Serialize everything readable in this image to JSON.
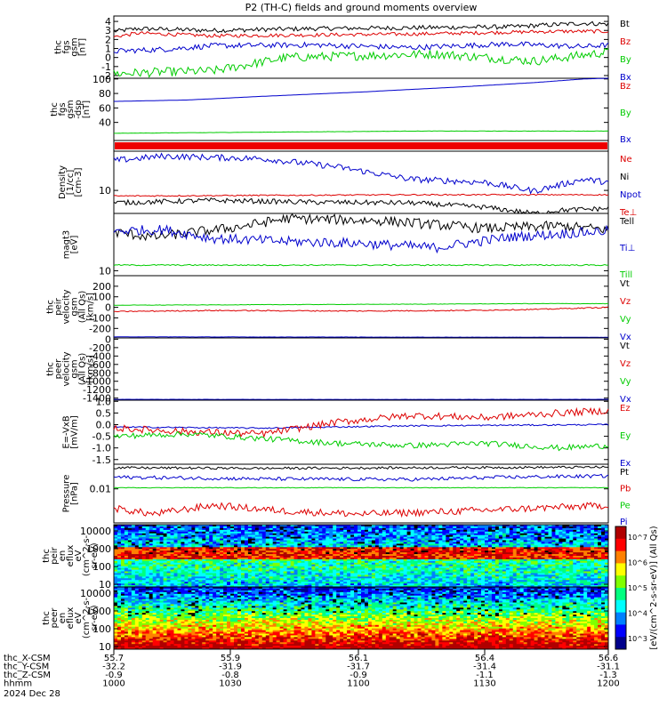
{
  "title": "P2 (TH-C) fields and ground moments overview",
  "date_label": "2024 Dec 28",
  "x_rows": [
    {
      "label": "thc_X-CSM",
      "values": [
        "55.7",
        "55.9",
        "56.1",
        "56.4",
        "56.6"
      ]
    },
    {
      "label": "thc_Y-CSM",
      "values": [
        "-32.2",
        "-31.9",
        "-31.7",
        "-31.4",
        "-31.1"
      ]
    },
    {
      "label": "thc_Z-CSM",
      "values": [
        "-0.9",
        "-0.8",
        "-0.9",
        "-1.1",
        "-1.3"
      ]
    },
    {
      "label": "hhmm",
      "values": [
        "1000",
        "1030",
        "1100",
        "1130",
        "1200"
      ]
    }
  ],
  "colors": {
    "black": "#000000",
    "red": "#dd0000",
    "green": "#00cc00",
    "blue": "#0000cc"
  },
  "colorbar_label": "[eV/(cm^2-s-sr-eV)] (All Qs)",
  "colorbar_ticks": [
    "10^7",
    "10^6",
    "10^5",
    "10^4",
    "10^3"
  ],
  "chart_data": [
    {
      "type": "line",
      "ylabel": [
        "thc",
        "fgs",
        "gsm",
        "[nT]"
      ],
      "ylim": [
        -2.3,
        4.6
      ],
      "yticks": [
        "4",
        "3",
        "2",
        "1",
        "0",
        "-1",
        "-2"
      ],
      "ytick_values": [
        4,
        3,
        2,
        1,
        0,
        -1,
        -2
      ],
      "legend": [
        {
          "name": "Bt",
          "color": "#000000"
        },
        {
          "name": "Bz",
          "color": "#dd0000"
        },
        {
          "name": "By",
          "color": "#00cc00"
        },
        {
          "name": "Bx",
          "color": "#0000cc"
        }
      ],
      "series": [
        {
          "name": "Bt",
          "anchors": [
            [
              0,
              2.9
            ],
            [
              0.05,
              3.2
            ],
            [
              0.2,
              3.0
            ],
            [
              0.4,
              3.2
            ],
            [
              0.6,
              3.3
            ],
            [
              0.8,
              3.4
            ],
            [
              0.95,
              3.8
            ],
            [
              1,
              3.7
            ]
          ],
          "noise": 0.25
        },
        {
          "name": "Bz",
          "anchors": [
            [
              0,
              2.3
            ],
            [
              0.05,
              2.7
            ],
            [
              0.2,
              2.4
            ],
            [
              0.4,
              2.5
            ],
            [
              0.6,
              2.6
            ],
            [
              0.8,
              2.8
            ],
            [
              0.9,
              2.9
            ],
            [
              1,
              2.9
            ]
          ],
          "noise": 0.2
        },
        {
          "name": "By",
          "anchors": [
            [
              0,
              -1.8
            ],
            [
              0.1,
              -1.6
            ],
            [
              0.2,
              -1.5
            ],
            [
              0.35,
              0
            ],
            [
              0.5,
              0.2
            ],
            [
              0.65,
              0.4
            ],
            [
              0.85,
              -0.4
            ],
            [
              1,
              0.6
            ]
          ],
          "noise": 0.5
        },
        {
          "name": "Bx",
          "anchors": [
            [
              0,
              0.7
            ],
            [
              0.1,
              0.9
            ],
            [
              0.2,
              1.3
            ],
            [
              0.4,
              1.4
            ],
            [
              0.6,
              1.1
            ],
            [
              0.8,
              1.5
            ],
            [
              0.95,
              1.2
            ],
            [
              1,
              1.4
            ]
          ],
          "noise": 0.3
        }
      ]
    },
    {
      "type": "line",
      "ylabel": [
        "thc",
        "fgs",
        "gsm",
        "-dsp",
        "[nT]"
      ],
      "ylim": [
        15,
        101
      ],
      "yticks": [
        "100",
        "80",
        "60",
        "40"
      ],
      "ytick_values": [
        100,
        80,
        60,
        40
      ],
      "legend": [
        {
          "name": "Bz",
          "color": "#dd0000"
        },
        {
          "name": "By",
          "color": "#00cc00"
        },
        {
          "name": "Bx",
          "color": "#0000cc"
        }
      ],
      "series": [
        {
          "name": "Bx",
          "anchors": [
            [
              0,
              69
            ],
            [
              0.15,
              71
            ],
            [
              0.3,
              76
            ],
            [
              0.5,
              82
            ],
            [
              0.7,
              89
            ],
            [
              0.85,
              95
            ],
            [
              0.95,
              100
            ],
            [
              1,
              101
            ]
          ],
          "noise": 0
        },
        {
          "name": "By",
          "anchors": [
            [
              0,
              25
            ],
            [
              0.2,
              26
            ],
            [
              0.4,
              27
            ],
            [
              0.6,
              28
            ],
            [
              0.8,
              28
            ],
            [
              1,
              28
            ]
          ],
          "noise": 0.2
        }
      ]
    },
    {
      "type": "line",
      "ylabel": [
        "Density",
        "[1/cc]",
        "[cm-3]"
      ],
      "ylim": [
        0,
        1
      ],
      "yticks": [
        "10"
      ],
      "ytick_values": [
        0.37
      ],
      "legend": [
        {
          "name": "Ne",
          "color": "#dd0000"
        },
        {
          "name": "Ni",
          "color": "#000000"
        },
        {
          "name": "Npot",
          "color": "#0000cc"
        },
        {
          "name": "Te⊥",
          "color": "#dd0000"
        }
      ],
      "series": [
        {
          "name": "Npot",
          "anchors": [
            [
              0,
              0.85
            ],
            [
              0.1,
              0.92
            ],
            [
              0.3,
              0.88
            ],
            [
              0.45,
              0.75
            ],
            [
              0.6,
              0.55
            ],
            [
              0.75,
              0.5
            ],
            [
              0.85,
              0.36
            ],
            [
              0.95,
              0.55
            ],
            [
              1,
              0.5
            ]
          ],
          "noise": 0.05
        },
        {
          "name": "Ne",
          "anchors": [
            [
              0,
              0.28
            ],
            [
              0.3,
              0.29
            ],
            [
              0.6,
              0.3
            ],
            [
              1,
              0.3
            ]
          ],
          "noise": 0.01
        },
        {
          "name": "Ni",
          "anchors": [
            [
              0,
              0.17
            ],
            [
              0.2,
              0.21
            ],
            [
              0.4,
              0.18
            ],
            [
              0.6,
              0.17
            ],
            [
              0.75,
              0.1
            ],
            [
              0.85,
              0.0
            ],
            [
              0.9,
              0.05
            ],
            [
              1,
              0.08
            ]
          ],
          "noise": 0.04
        }
      ]
    },
    {
      "type": "line",
      "ylabel": [
        "magt3",
        "[eV]"
      ],
      "ylim": [
        0,
        1
      ],
      "yticks": [
        "10"
      ],
      "ytick_values": [
        0.08
      ],
      "legend": [
        {
          "name": "Tell",
          "color": "#000000"
        },
        {
          "name": "Ti⊥",
          "color": "#0000cc"
        },
        {
          "name": "Till",
          "color": "#00cc00"
        }
      ],
      "series": [
        {
          "name": "Tell",
          "anchors": [
            [
              0,
              0.7
            ],
            [
              0.08,
              0.62
            ],
            [
              0.25,
              0.78
            ],
            [
              0.35,
              0.92
            ],
            [
              0.55,
              0.88
            ],
            [
              0.75,
              0.76
            ],
            [
              0.9,
              0.8
            ],
            [
              1,
              0.74
            ]
          ],
          "noise": 0.08
        },
        {
          "name": "Ti⊥",
          "anchors": [
            [
              0,
              0.72
            ],
            [
              0.1,
              0.74
            ],
            [
              0.2,
              0.6
            ],
            [
              0.35,
              0.55
            ],
            [
              0.5,
              0.52
            ],
            [
              0.65,
              0.45
            ],
            [
              0.8,
              0.62
            ],
            [
              1,
              0.72
            ]
          ],
          "noise": 0.08
        },
        {
          "name": "Till",
          "anchors": [
            [
              0,
              0.17
            ],
            [
              0.5,
              0.17
            ],
            [
              1,
              0.17
            ]
          ],
          "noise": 0.01
        }
      ]
    },
    {
      "type": "line",
      "ylabel": [
        "thc",
        "peir",
        "velocity",
        "gsm",
        "(All Qs)",
        "[km/s]"
      ],
      "ylim": [
        -290,
        300
      ],
      "yticks": [
        "200",
        "100",
        "0",
        "-100",
        "-200"
      ],
      "ytick_values": [
        200,
        100,
        0,
        -100,
        -200
      ],
      "legend": [
        {
          "name": "Vt",
          "color": "#000000"
        },
        {
          "name": "Vz",
          "color": "#dd0000"
        },
        {
          "name": "Vy",
          "color": "#00cc00"
        },
        {
          "name": "Vx",
          "color": "#0000cc"
        }
      ],
      "series": [
        {
          "name": "Vy",
          "anchors": [
            [
              0,
              20
            ],
            [
              0.3,
              25
            ],
            [
              0.6,
              30
            ],
            [
              0.85,
              35
            ],
            [
              1,
              35
            ]
          ],
          "noise": 2
        },
        {
          "name": "Vz",
          "anchors": [
            [
              0,
              -40
            ],
            [
              0.2,
              -30
            ],
            [
              0.5,
              -35
            ],
            [
              0.7,
              -30
            ],
            [
              0.85,
              -20
            ],
            [
              1,
              0
            ]
          ],
          "noise": 5
        },
        {
          "name": "Vx",
          "anchors": [
            [
              0,
              -280
            ],
            [
              0.5,
              -282
            ],
            [
              1,
              -284
            ]
          ],
          "noise": 1
        }
      ]
    },
    {
      "type": "line",
      "ylabel": [
        "thc",
        "peer",
        "velocity",
        "gsm",
        "(All Qs)",
        "[km/s]"
      ],
      "ylim": [
        -1450,
        30
      ],
      "yticks": [
        "0",
        "-200",
        "-400",
        "-600",
        "-800",
        "-1000",
        "-1200",
        "-1400"
      ],
      "ytick_values": [
        0,
        -200,
        -400,
        -600,
        -800,
        -1000,
        -1200,
        -1400
      ],
      "legend": [
        {
          "name": "Vt",
          "color": "#000000"
        },
        {
          "name": "Vz",
          "color": "#dd0000"
        },
        {
          "name": "Vy",
          "color": "#00cc00"
        },
        {
          "name": "Vx",
          "color": "#0000cc"
        }
      ],
      "series": [
        {
          "name": "Vx",
          "anchors": [
            [
              0,
              -1430
            ],
            [
              0.5,
              -1432
            ],
            [
              1,
              -1430
            ]
          ],
          "noise": 2
        }
      ]
    },
    {
      "type": "line",
      "ylabel": [
        "E=-VxB",
        "[mV/m]"
      ],
      "ylim": [
        -1.7,
        1.05
      ],
      "yticks": [
        "1.0",
        "0.5",
        "0.0",
        "-0.5",
        "-1.0",
        "-1.5"
      ],
      "ytick_values": [
        1.0,
        0.5,
        0.0,
        -0.5,
        -1.0,
        -1.5
      ],
      "legend": [
        {
          "name": "Ez",
          "color": "#dd0000"
        },
        {
          "name": "Ey",
          "color": "#00cc00"
        },
        {
          "name": "Ex",
          "color": "#0000cc"
        }
      ],
      "series": [
        {
          "name": "Ex",
          "anchors": [
            [
              0,
              -0.1
            ],
            [
              0.3,
              -0.15
            ],
            [
              0.6,
              -0.05
            ],
            [
              1,
              0.0
            ]
          ],
          "noise": 0.03
        },
        {
          "name": "Ez",
          "anchors": [
            [
              0,
              -0.15
            ],
            [
              0.15,
              -0.3
            ],
            [
              0.3,
              -0.4
            ],
            [
              0.45,
              0.1
            ],
            [
              0.6,
              0.4
            ],
            [
              0.75,
              0.3
            ],
            [
              0.9,
              0.5
            ],
            [
              1,
              0.6
            ]
          ],
          "noise": 0.15
        },
        {
          "name": "Ey",
          "anchors": [
            [
              0,
              -0.5
            ],
            [
              0.15,
              -0.4
            ],
            [
              0.3,
              -0.6
            ],
            [
              0.45,
              -0.8
            ],
            [
              0.6,
              -0.9
            ],
            [
              0.75,
              -0.8
            ],
            [
              0.9,
              -1.0
            ],
            [
              1,
              -0.9
            ]
          ],
          "noise": 0.12
        }
      ]
    },
    {
      "type": "line",
      "ylabel": [
        "Pressure",
        "[nPa]"
      ],
      "ylim": [
        0,
        1
      ],
      "yticks": [
        "0.01"
      ],
      "ytick_values": [
        0.58
      ],
      "legend": [
        {
          "name": "Pt",
          "color": "#000000"
        },
        {
          "name": "Pb",
          "color": "#dd0000"
        },
        {
          "name": "Pe",
          "color": "#00cc00"
        },
        {
          "name": "Pi",
          "color": "#0000cc"
        }
      ],
      "series": [
        {
          "name": "Pt",
          "anchors": [
            [
              0,
              0.94
            ],
            [
              0.3,
              0.93
            ],
            [
              0.6,
              0.94
            ],
            [
              1,
              0.95
            ]
          ],
          "noise": 0.02
        },
        {
          "name": "Pi",
          "anchors": [
            [
              0,
              0.78
            ],
            [
              0.3,
              0.75
            ],
            [
              0.6,
              0.74
            ],
            [
              0.8,
              0.78
            ],
            [
              1,
              0.8
            ]
          ],
          "noise": 0.03
        },
        {
          "name": "Pe",
          "anchors": [
            [
              0,
              0.6
            ],
            [
              0.5,
              0.6
            ],
            [
              1,
              0.6
            ]
          ],
          "noise": 0.005
        },
        {
          "name": "Pb",
          "anchors": [
            [
              0,
              0.25
            ],
            [
              0.08,
              0.15
            ],
            [
              0.2,
              0.3
            ],
            [
              0.35,
              0.2
            ],
            [
              0.5,
              0.15
            ],
            [
              0.7,
              0.2
            ],
            [
              0.85,
              0.25
            ],
            [
              1,
              0.3
            ]
          ],
          "noise": 0.06
        }
      ]
    },
    {
      "type": "heatmap",
      "ylabel": [
        "thc",
        "peir",
        "en",
        "eflux",
        "eV",
        "(cm^2-s-",
        "sr-eV)"
      ],
      "yticks": [
        "10000",
        "1000",
        "100",
        "10"
      ],
      "ytick_values": [
        4,
        3,
        2,
        1
      ],
      "ylim": [
        0.85,
        4.35
      ]
    },
    {
      "type": "heatmap",
      "ylabel": [
        "thc",
        "peer",
        "en",
        "eflux",
        "eV",
        "(cm^2-s-",
        "sr-eV)"
      ],
      "yticks": [
        "10000",
        "1000",
        "100",
        "10"
      ],
      "ytick_values": [
        4,
        3,
        2,
        1
      ],
      "ylim": [
        0.85,
        4.35
      ]
    }
  ]
}
